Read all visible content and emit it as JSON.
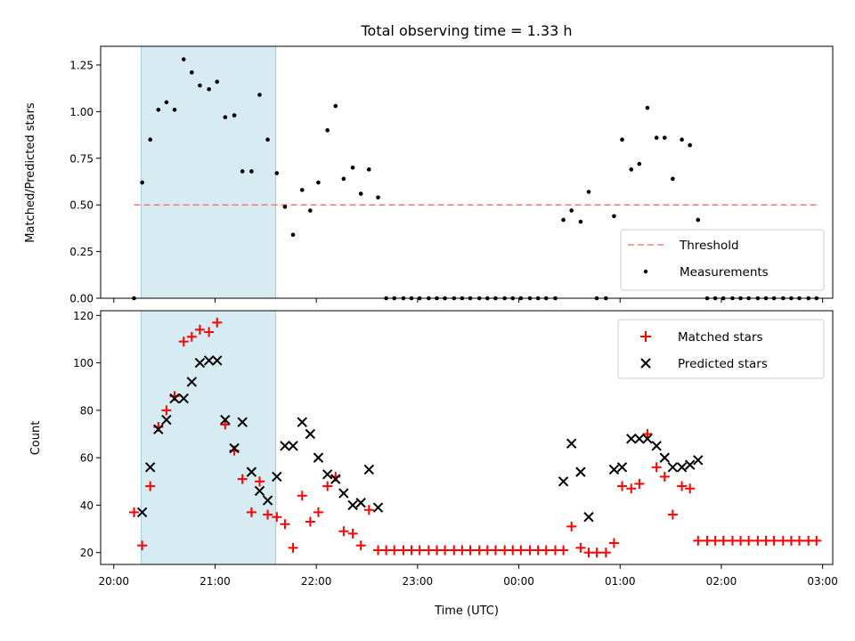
{
  "chart_data": [
    {
      "type": "scatter",
      "title": "Total observing time = 1.33 h",
      "ylabel": "Matched/Predicted stars",
      "xlabel": "",
      "xlim": [
        -0.13,
        7.1
      ],
      "ylim": [
        0,
        1.35
      ],
      "ytick_labels": [
        "0.00",
        "0.25",
        "0.50",
        "0.75",
        "1.00",
        "1.25"
      ],
      "yticks": [
        0,
        0.25,
        0.5,
        0.75,
        1.0,
        1.25
      ],
      "xticks": [
        0,
        1,
        2,
        3,
        4,
        5,
        6,
        7
      ],
      "highlight_span": [
        0.27,
        1.6
      ],
      "threshold": {
        "name": "Threshold",
        "value": 0.5,
        "x_range": [
          0.2,
          6.95
        ],
        "color": "#ff7f7f"
      },
      "legend": {
        "placement": "lower-right",
        "entries": [
          "Threshold",
          "Measurements"
        ]
      },
      "series": [
        {
          "name": "Measurements",
          "color": "#000000",
          "points": [
            [
              0.2,
              0.0
            ],
            [
              0.28,
              0.62
            ],
            [
              0.36,
              0.85
            ],
            [
              0.44,
              1.01
            ],
            [
              0.52,
              1.05
            ],
            [
              0.6,
              1.01
            ],
            [
              0.69,
              1.28
            ],
            [
              0.77,
              1.21
            ],
            [
              0.85,
              1.14
            ],
            [
              0.94,
              1.12
            ],
            [
              1.02,
              1.16
            ],
            [
              1.1,
              0.97
            ],
            [
              1.19,
              0.98
            ],
            [
              1.27,
              0.68
            ],
            [
              1.36,
              0.68
            ],
            [
              1.44,
              1.09
            ],
            [
              1.52,
              0.85
            ],
            [
              1.61,
              0.67
            ],
            [
              1.69,
              0.49
            ],
            [
              1.77,
              0.34
            ],
            [
              1.86,
              0.58
            ],
            [
              1.94,
              0.47
            ],
            [
              2.02,
              0.62
            ],
            [
              2.11,
              0.9
            ],
            [
              2.19,
              1.03
            ],
            [
              2.27,
              0.64
            ],
            [
              2.36,
              0.7
            ],
            [
              2.44,
              0.56
            ],
            [
              2.52,
              0.69
            ],
            [
              2.61,
              0.54
            ],
            [
              2.69,
              0.0
            ],
            [
              2.77,
              0.0
            ],
            [
              2.86,
              0.0
            ],
            [
              2.94,
              0.0
            ],
            [
              3.02,
              0.0
            ],
            [
              3.11,
              0.0
            ],
            [
              3.19,
              0.0
            ],
            [
              3.27,
              0.0
            ],
            [
              3.36,
              0.0
            ],
            [
              3.44,
              0.0
            ],
            [
              3.52,
              0.0
            ],
            [
              3.61,
              0.0
            ],
            [
              3.69,
              0.0
            ],
            [
              3.77,
              0.0
            ],
            [
              3.86,
              0.0
            ],
            [
              3.94,
              0.0
            ],
            [
              4.02,
              0.0
            ],
            [
              4.11,
              0.0
            ],
            [
              4.19,
              0.0
            ],
            [
              4.27,
              0.0
            ],
            [
              4.36,
              0.0
            ],
            [
              4.44,
              0.42
            ],
            [
              4.52,
              0.47
            ],
            [
              4.61,
              0.41
            ],
            [
              4.69,
              0.57
            ],
            [
              4.77,
              0.0
            ],
            [
              4.86,
              0.0
            ],
            [
              4.94,
              0.44
            ],
            [
              5.02,
              0.85
            ],
            [
              5.11,
              0.69
            ],
            [
              5.19,
              0.72
            ],
            [
              5.27,
              1.02
            ],
            [
              5.36,
              0.86
            ],
            [
              5.44,
              0.86
            ],
            [
              5.52,
              0.64
            ],
            [
              5.61,
              0.85
            ],
            [
              5.69,
              0.82
            ],
            [
              5.77,
              0.42
            ],
            [
              5.86,
              0.0
            ],
            [
              5.94,
              0.0
            ],
            [
              6.02,
              0.0
            ],
            [
              6.11,
              0.0
            ],
            [
              6.19,
              0.0
            ],
            [
              6.27,
              0.0
            ],
            [
              6.36,
              0.0
            ],
            [
              6.44,
              0.0
            ],
            [
              6.52,
              0.0
            ],
            [
              6.61,
              0.0
            ],
            [
              6.69,
              0.0
            ],
            [
              6.77,
              0.0
            ],
            [
              6.86,
              0.0
            ],
            [
              6.94,
              0.0
            ]
          ]
        }
      ]
    },
    {
      "type": "scatter",
      "title": "",
      "xlabel": "Time (UTC)",
      "ylabel": "Count",
      "xlim": [
        -0.13,
        7.1
      ],
      "ylim": [
        15,
        122
      ],
      "yticks": [
        20,
        40,
        60,
        80,
        100,
        120
      ],
      "ytick_labels": [
        "20",
        "40",
        "60",
        "80",
        "100",
        "120"
      ],
      "xticks": [
        0,
        1,
        2,
        3,
        4,
        5,
        6,
        7
      ],
      "xtick_labels": [
        "20:00",
        "21:00",
        "22:00",
        "23:00",
        "00:00",
        "01:00",
        "02:00",
        "03:00"
      ],
      "highlight_span": [
        0.27,
        1.6
      ],
      "legend": {
        "placement": "upper-right",
        "entries": [
          "Matched stars",
          "Predicted stars"
        ]
      },
      "series": [
        {
          "name": "Matched stars",
          "marker": "plus",
          "color": "#ff0000",
          "points": [
            [
              0.2,
              37
            ],
            [
              0.28,
              23
            ],
            [
              0.36,
              48
            ],
            [
              0.44,
              73
            ],
            [
              0.52,
              80
            ],
            [
              0.6,
              86
            ],
            [
              0.69,
              109
            ],
            [
              0.77,
              111
            ],
            [
              0.85,
              114
            ],
            [
              0.94,
              113
            ],
            [
              1.02,
              117
            ],
            [
              1.1,
              74
            ],
            [
              1.19,
              63
            ],
            [
              1.27,
              51
            ],
            [
              1.36,
              37
            ],
            [
              1.44,
              50
            ],
            [
              1.52,
              36
            ],
            [
              1.61,
              35
            ],
            [
              1.69,
              32
            ],
            [
              1.77,
              22
            ],
            [
              1.86,
              44
            ],
            [
              1.94,
              33
            ],
            [
              2.02,
              37
            ],
            [
              2.11,
              48
            ],
            [
              2.19,
              52
            ],
            [
              2.27,
              29
            ],
            [
              2.36,
              28
            ],
            [
              2.44,
              23
            ],
            [
              2.52,
              38
            ],
            [
              2.61,
              21
            ],
            [
              2.69,
              21
            ],
            [
              2.77,
              21
            ],
            [
              2.86,
              21
            ],
            [
              2.94,
              21
            ],
            [
              3.02,
              21
            ],
            [
              3.11,
              21
            ],
            [
              3.19,
              21
            ],
            [
              3.27,
              21
            ],
            [
              3.36,
              21
            ],
            [
              3.44,
              21
            ],
            [
              3.52,
              21
            ],
            [
              3.61,
              21
            ],
            [
              3.69,
              21
            ],
            [
              3.77,
              21
            ],
            [
              3.86,
              21
            ],
            [
              3.94,
              21
            ],
            [
              4.02,
              21
            ],
            [
              4.11,
              21
            ],
            [
              4.19,
              21
            ],
            [
              4.27,
              21
            ],
            [
              4.36,
              21
            ],
            [
              4.44,
              21
            ],
            [
              4.52,
              31
            ],
            [
              4.61,
              22
            ],
            [
              4.69,
              20
            ],
            [
              4.77,
              20
            ],
            [
              4.86,
              20
            ],
            [
              4.94,
              24
            ],
            [
              5.02,
              48
            ],
            [
              5.11,
              47
            ],
            [
              5.19,
              49
            ],
            [
              5.27,
              70
            ],
            [
              5.36,
              56
            ],
            [
              5.44,
              52
            ],
            [
              5.52,
              36
            ],
            [
              5.61,
              48
            ],
            [
              5.69,
              47
            ],
            [
              5.77,
              25
            ],
            [
              5.86,
              25
            ],
            [
              5.94,
              25
            ],
            [
              6.02,
              25
            ],
            [
              6.11,
              25
            ],
            [
              6.19,
              25
            ],
            [
              6.27,
              25
            ],
            [
              6.36,
              25
            ],
            [
              6.44,
              25
            ],
            [
              6.52,
              25
            ],
            [
              6.61,
              25
            ],
            [
              6.69,
              25
            ],
            [
              6.77,
              25
            ],
            [
              6.86,
              25
            ],
            [
              6.94,
              25
            ]
          ]
        },
        {
          "name": "Predicted stars",
          "marker": "x",
          "color": "#000000",
          "points": [
            [
              0.28,
              37
            ],
            [
              0.36,
              56
            ],
            [
              0.44,
              72
            ],
            [
              0.52,
              76
            ],
            [
              0.6,
              85
            ],
            [
              0.69,
              85
            ],
            [
              0.77,
              92
            ],
            [
              0.85,
              100
            ],
            [
              0.94,
              101
            ],
            [
              1.02,
              101
            ],
            [
              1.1,
              76
            ],
            [
              1.19,
              64
            ],
            [
              1.27,
              75
            ],
            [
              1.36,
              54
            ],
            [
              1.44,
              46
            ],
            [
              1.52,
              42
            ],
            [
              1.61,
              52
            ],
            [
              1.69,
              65
            ],
            [
              1.77,
              65
            ],
            [
              1.86,
              75
            ],
            [
              1.94,
              70
            ],
            [
              2.02,
              60
            ],
            [
              2.11,
              53
            ],
            [
              2.19,
              51
            ],
            [
              2.27,
              45
            ],
            [
              2.36,
              40
            ],
            [
              2.44,
              41
            ],
            [
              2.52,
              55
            ],
            [
              2.61,
              39
            ],
            [
              4.44,
              50
            ],
            [
              4.52,
              66
            ],
            [
              4.61,
              54
            ],
            [
              4.69,
              35
            ],
            [
              4.94,
              55
            ],
            [
              5.02,
              56
            ],
            [
              5.11,
              68
            ],
            [
              5.19,
              68
            ],
            [
              5.27,
              68
            ],
            [
              5.36,
              65
            ],
            [
              5.44,
              60
            ],
            [
              5.52,
              56
            ],
            [
              5.61,
              56
            ],
            [
              5.69,
              57
            ],
            [
              5.77,
              59
            ]
          ]
        }
      ]
    }
  ]
}
